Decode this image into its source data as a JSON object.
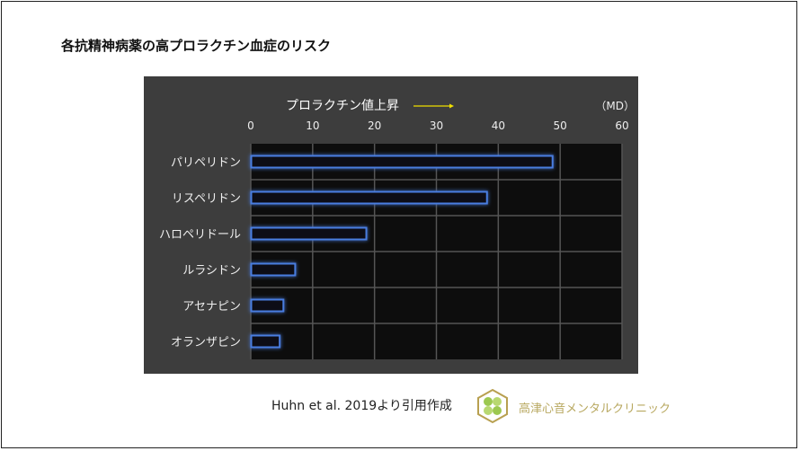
{
  "title": "各抗精神病薬の高プロラクチン血症のリスク",
  "citation": "Huhn et al. 2019より引用作成",
  "clinic_name": "高津心音メンタルクリニック",
  "colors": {
    "bar_edge": "#4a7de0",
    "panel": "#3d3d3d",
    "plot": "#0d0d0d",
    "arrow": "#f0e000"
  },
  "chart_data": {
    "type": "bar",
    "orientation": "horizontal",
    "title": "プロラクチン値上昇",
    "unit_label": "（MD）",
    "categories": [
      "パリペリドン",
      "リスペリドン",
      "ハロペリドール",
      "ルラシドン",
      "アセナピン",
      "オランザピン"
    ],
    "values": [
      48.7,
      38.1,
      18.6,
      7.1,
      5.2,
      4.6
    ],
    "xlim": [
      0,
      60
    ],
    "xticks": [
      "0",
      "10",
      "20",
      "30",
      "40",
      "50",
      "60"
    ],
    "grid": true
  }
}
